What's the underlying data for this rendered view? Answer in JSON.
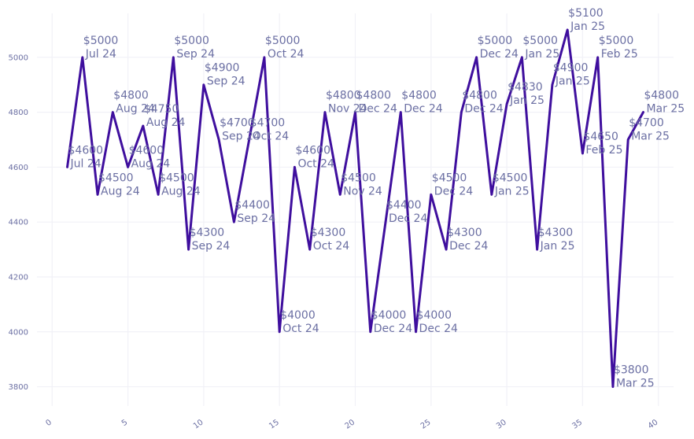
{
  "chart_data": {
    "type": "line",
    "title": "",
    "xlabel": "",
    "ylabel": "",
    "xlim": [
      -1,
      41
    ],
    "ylim": [
      3730,
      5160
    ],
    "x_ticks": [
      0,
      5,
      10,
      15,
      20,
      25,
      30,
      35,
      40
    ],
    "x_tick_labels": [
      "0",
      "5",
      "10",
      "15",
      "20",
      "25",
      "30",
      "35",
      "40"
    ],
    "y_ticks": [
      3800,
      4000,
      4200,
      4400,
      4600,
      4800,
      5000
    ],
    "y_tick_labels": [
      "3800",
      "4000",
      "4200",
      "4400",
      "4600",
      "4800",
      "5000"
    ],
    "grid": true,
    "line_color": "#3f0f9e",
    "label_color": "#6b6fa3",
    "series": [
      {
        "x": [
          1,
          2,
          3,
          4,
          5,
          6,
          7,
          8,
          9,
          10,
          11,
          12,
          13,
          14,
          15,
          16,
          17,
          18,
          19,
          20,
          21,
          22,
          23,
          24,
          25,
          26,
          27,
          28,
          29,
          30,
          31,
          32,
          33,
          34,
          35,
          36,
          37,
          38,
          39
        ],
        "values": [
          4600,
          5000,
          4500,
          4800,
          4600,
          4750,
          4500,
          5000,
          4300,
          4900,
          4700,
          4400,
          4700,
          5000,
          4000,
          4600,
          4300,
          4800,
          4500,
          4800,
          4000,
          4400,
          4800,
          4000,
          4500,
          4300,
          4800,
          5000,
          4500,
          4830,
          5000,
          4300,
          4900,
          5100,
          4650,
          5000,
          3800,
          4700,
          4800
        ],
        "price_labels": [
          "$4600",
          "$5000",
          "$4500",
          "$4800",
          "$4600",
          "$4750",
          "$4500",
          "$5000",
          "$4300",
          "$4900",
          "$4700",
          "$4400",
          "$4700",
          "$5000",
          "$4000",
          "$4600",
          "$4300",
          "$4800",
          "$4500",
          "$4800",
          "$4000",
          "$4400",
          "$4800",
          "$4000",
          "$4500",
          "$4300",
          "$4800",
          "$5000",
          "$4500",
          "$4830",
          "$5000",
          "$4300",
          "$4900",
          "$5100",
          "$4650",
          "$5000",
          "$3800",
          "$4700",
          "$4800"
        ],
        "month_labels": [
          "Jul 24",
          "Jul 24",
          "Aug 24",
          "Aug 24",
          "Aug 24",
          "Aug 24",
          "Aug 24",
          "Sep 24",
          "Sep 24",
          "Sep 24",
          "Sep 24",
          "Sep 24",
          "Oct 24",
          "Oct 24",
          "Oct 24",
          "Oct 24",
          "Oct 24",
          "Nov 24",
          "Nov 24",
          "Dec 24",
          "Dec 24",
          "Dec 24",
          "Dec 24",
          "Dec 24",
          "Dec 24",
          "Dec 24",
          "Dec 24",
          "Dec 24",
          "Jan 25",
          "Jan 25",
          "Jan 25",
          "Jan 25",
          "Jan 25",
          "Jan 25",
          "Feb 25",
          "Feb 25",
          "Mar 25",
          "Mar 25",
          "Mar 25"
        ]
      }
    ]
  }
}
